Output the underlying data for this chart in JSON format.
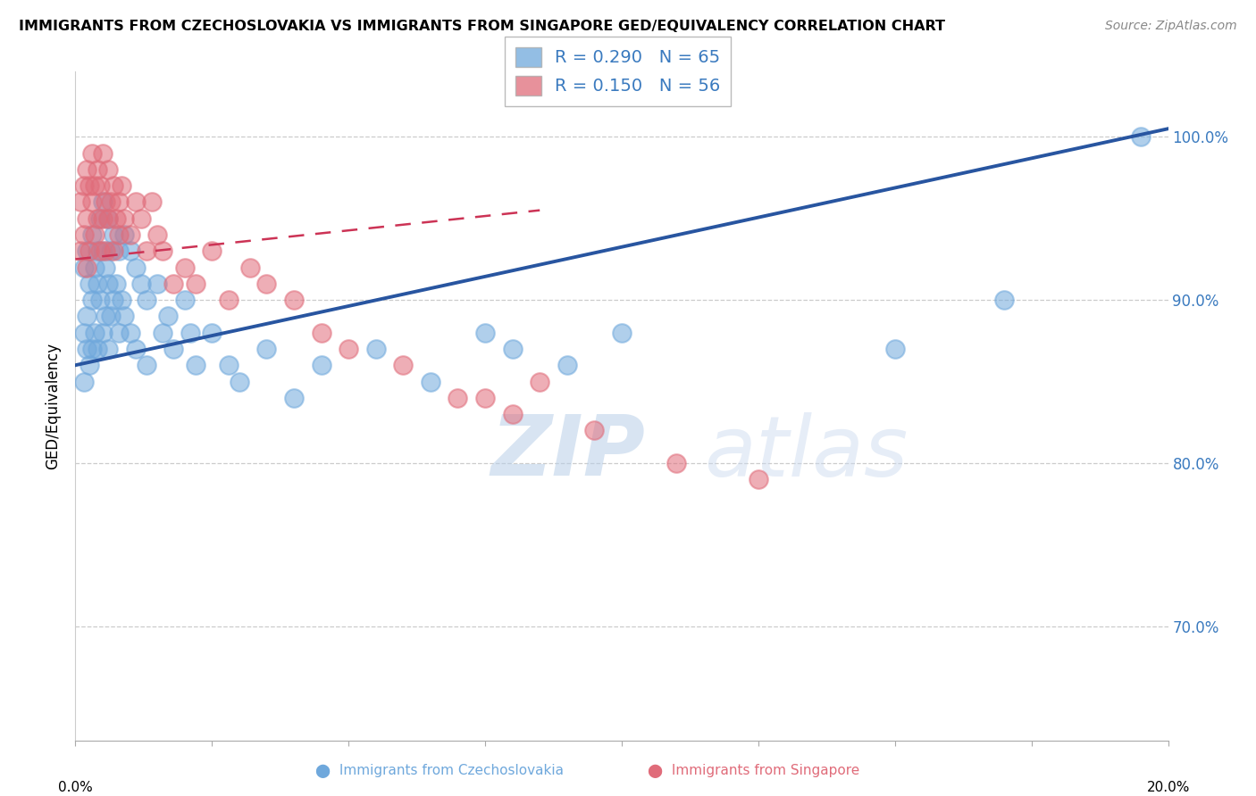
{
  "title": "IMMIGRANTS FROM CZECHOSLOVAKIA VS IMMIGRANTS FROM SINGAPORE GED/EQUIVALENCY CORRELATION CHART",
  "source": "Source: ZipAtlas.com",
  "ylabel": "GED/Equivalency",
  "R_blue": 0.29,
  "N_blue": 65,
  "R_pink": 0.15,
  "N_pink": 56,
  "blue_color": "#6fa8dc",
  "pink_color": "#e06c7a",
  "xmin": 0.0,
  "xmax": 20.0,
  "ymin": 63.0,
  "ymax": 104.0,
  "ytick_vals": [
    70,
    80,
    90,
    100
  ],
  "ytick_labels": [
    "70.0%",
    "80.0%",
    "90.0%",
    "100.0%"
  ],
  "blue_line_x": [
    0.0,
    20.0
  ],
  "blue_line_y": [
    86.0,
    100.5
  ],
  "pink_line_x": [
    0.0,
    8.5
  ],
  "pink_line_y": [
    92.5,
    95.5
  ],
  "blue_scatter_x": [
    0.15,
    0.15,
    0.15,
    0.2,
    0.2,
    0.2,
    0.25,
    0.25,
    0.3,
    0.3,
    0.3,
    0.35,
    0.35,
    0.4,
    0.4,
    0.4,
    0.45,
    0.45,
    0.5,
    0.5,
    0.5,
    0.55,
    0.55,
    0.6,
    0.6,
    0.6,
    0.65,
    0.65,
    0.7,
    0.7,
    0.75,
    0.8,
    0.8,
    0.85,
    0.9,
    0.9,
    1.0,
    1.0,
    1.1,
    1.1,
    1.2,
    1.3,
    1.3,
    1.5,
    1.6,
    1.7,
    1.8,
    2.0,
    2.1,
    2.2,
    2.5,
    2.8,
    3.0,
    3.5,
    4.0,
    4.5,
    5.5,
    6.5,
    7.5,
    8.0,
    9.0,
    10.0,
    15.0,
    17.0,
    19.5
  ],
  "blue_scatter_y": [
    92,
    88,
    85,
    93,
    89,
    87,
    91,
    86,
    94,
    90,
    87,
    92,
    88,
    93,
    91,
    87,
    95,
    90,
    96,
    93,
    88,
    92,
    89,
    95,
    91,
    87,
    93,
    89,
    94,
    90,
    91,
    93,
    88,
    90,
    94,
    89,
    93,
    88,
    92,
    87,
    91,
    90,
    86,
    91,
    88,
    89,
    87,
    90,
    88,
    86,
    88,
    86,
    85,
    87,
    84,
    86,
    87,
    85,
    88,
    87,
    86,
    88,
    87,
    90,
    100
  ],
  "pink_scatter_x": [
    0.1,
    0.1,
    0.15,
    0.15,
    0.2,
    0.2,
    0.2,
    0.25,
    0.25,
    0.3,
    0.3,
    0.35,
    0.35,
    0.4,
    0.4,
    0.45,
    0.45,
    0.5,
    0.5,
    0.55,
    0.55,
    0.6,
    0.6,
    0.65,
    0.7,
    0.7,
    0.75,
    0.8,
    0.8,
    0.85,
    0.9,
    1.0,
    1.1,
    1.2,
    1.3,
    1.4,
    1.5,
    1.6,
    1.8,
    2.0,
    2.2,
    2.5,
    2.8,
    3.2,
    3.5,
    4.0,
    4.5,
    5.0,
    6.0,
    7.0,
    7.5,
    8.0,
    8.5,
    9.5,
    11.0,
    12.5
  ],
  "pink_scatter_y": [
    96,
    93,
    97,
    94,
    98,
    95,
    92,
    97,
    93,
    99,
    96,
    97,
    94,
    98,
    95,
    97,
    93,
    99,
    95,
    96,
    93,
    98,
    95,
    96,
    97,
    93,
    95,
    96,
    94,
    97,
    95,
    94,
    96,
    95,
    93,
    96,
    94,
    93,
    91,
    92,
    91,
    93,
    90,
    92,
    91,
    90,
    88,
    87,
    86,
    84,
    84,
    83,
    85,
    82,
    80,
    79
  ],
  "watermark_zip": "ZIP",
  "watermark_atlas": "atlas",
  "legend_label_blue": "Immigrants from Czechoslovakia",
  "legend_label_pink": "Immigrants from Singapore"
}
